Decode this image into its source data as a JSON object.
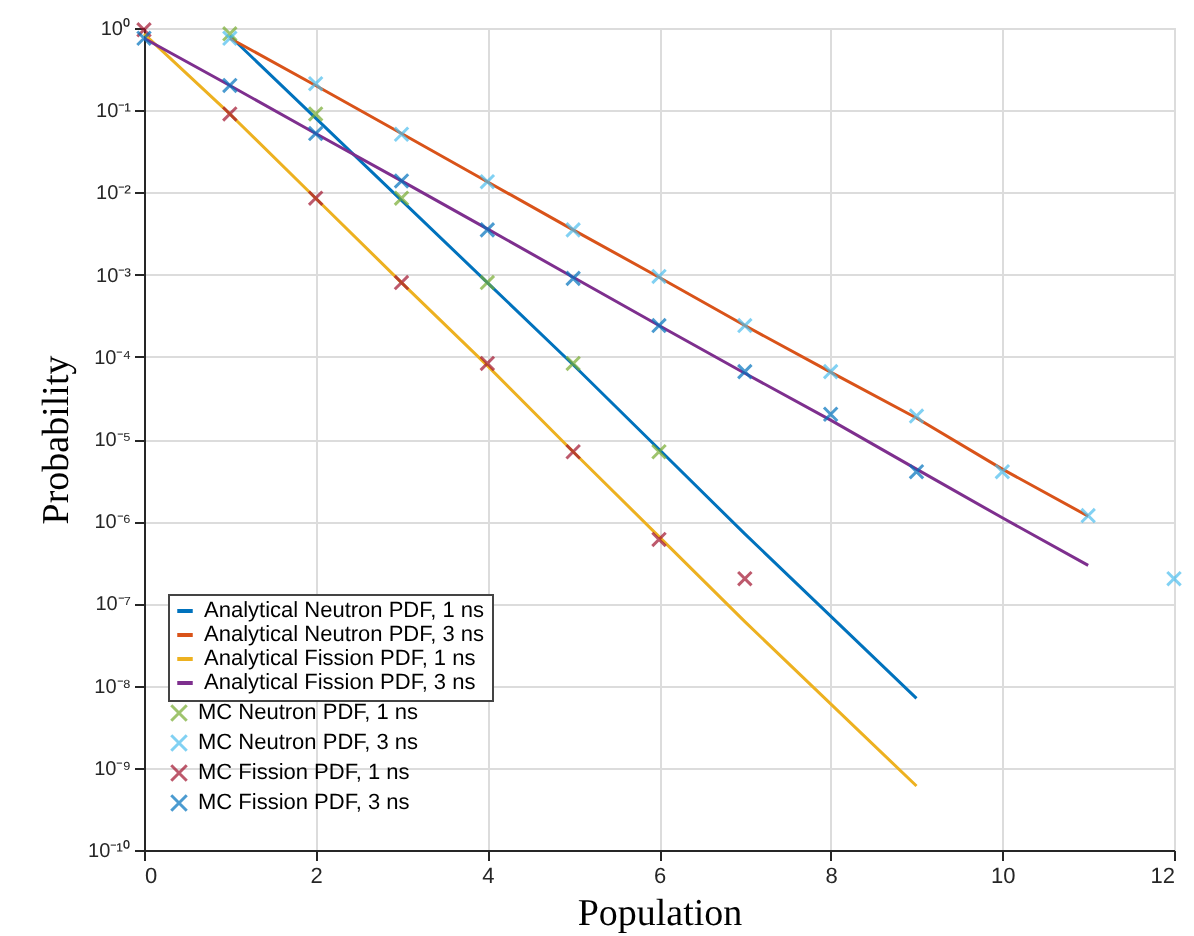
{
  "chart_data": {
    "type": "line",
    "xlabel": "Population",
    "ylabel": "Probability",
    "log": "y",
    "grid": true,
    "legend": "bottom left",
    "xlim": [
      0,
      12
    ],
    "xticks": [
      0,
      2,
      4,
      6,
      8,
      10,
      12
    ],
    "ylim": [
      1e-10,
      1
    ],
    "yticks": [
      {
        "value": 1e-10,
        "label": "10⁻¹⁰"
      },
      {
        "value": 1e-09,
        "label": "10⁻⁹"
      },
      {
        "value": 1e-08,
        "label": "10⁻⁸"
      },
      {
        "value": 1e-07,
        "label": "10⁻⁷"
      },
      {
        "value": 1e-06,
        "label": "10⁻⁶"
      },
      {
        "value": 1e-05,
        "label": "10⁻⁵"
      },
      {
        "value": 0.0001,
        "label": "10⁻⁴"
      },
      {
        "value": 0.001,
        "label": "10⁻³"
      },
      {
        "value": 0.01,
        "label": "10⁻²"
      },
      {
        "value": 0.1,
        "label": "10⁻¹"
      },
      {
        "value": 1,
        "label": "10⁰"
      }
    ],
    "series": [
      {
        "name": "Analytical Neutron PDF, 1 ns",
        "line_style": "solid",
        "color": "#0072bd",
        "x": [
          1,
          2,
          3,
          4,
          5,
          6,
          7,
          8,
          9
        ],
        "values": [
          0.8,
          0.08,
          0.008,
          0.0008,
          8e-05,
          7.5e-06,
          7e-07,
          7e-08,
          7e-09
        ]
      },
      {
        "name": "Analytical Neutron PDF, 3 ns",
        "line_style": "solid",
        "color": "#d95319",
        "x": [
          1,
          2,
          3,
          4,
          5,
          6,
          7,
          8,
          9,
          10,
          11
        ],
        "values": [
          0.75,
          0.2,
          0.052,
          0.0135,
          0.0035,
          0.00093,
          0.00024,
          6.5e-05,
          1.8e-05,
          4.3e-06,
          1.15e-06
        ]
      },
      {
        "name": "Analytical Fission PDF, 1 ns",
        "line_style": "solid",
        "color": "#edb120",
        "x": [
          0,
          1,
          2,
          3,
          4,
          5,
          6,
          7,
          8,
          9
        ],
        "values": [
          0.85,
          0.09,
          0.0085,
          0.0008,
          7.8e-05,
          7e-06,
          6.5e-07,
          6e-08,
          6e-09,
          6e-10
        ]
      },
      {
        "name": "Analytical Fission PDF, 3 ns",
        "line_style": "solid",
        "color": "#7e2f8e",
        "x": [
          0,
          1,
          2,
          3,
          4,
          5,
          6,
          7,
          8,
          9,
          10,
          11
        ],
        "values": [
          0.75,
          0.2,
          0.052,
          0.0138,
          0.0036,
          0.00093,
          0.00024,
          6.3e-05,
          1.7e-05,
          4.3e-06,
          1.1e-06,
          2.9e-07
        ]
      },
      {
        "name": "MC Neutron PDF, 1 ns",
        "type": "scatter",
        "marker": "cross",
        "color": "#77ac30",
        "x": [
          1,
          2,
          3,
          4,
          5,
          6
        ],
        "values": [
          0.85,
          0.09,
          0.0085,
          0.0008,
          8.3e-05,
          7e-06
        ]
      },
      {
        "name": "MC Neutron PDF, 3 ns",
        "type": "scatter",
        "marker": "cross",
        "color": "#4dbeee",
        "x": [
          1,
          2,
          3,
          4,
          5,
          6,
          7,
          8,
          9,
          10,
          11,
          12
        ],
        "values": [
          0.75,
          0.21,
          0.051,
          0.0135,
          0.0035,
          0.00095,
          0.00024,
          6.6e-05,
          1.9e-05,
          4e-06,
          1.17e-06,
          2e-07
        ]
      },
      {
        "name": "MC Fission PDF, 1 ns",
        "type": "scatter",
        "marker": "cross",
        "color": "#a2142f",
        "x": [
          0,
          1,
          2,
          3,
          4,
          5,
          6,
          7
        ],
        "values": [
          0.95,
          0.09,
          0.0085,
          0.0008,
          8.3e-05,
          7e-06,
          6e-07,
          2e-07
        ]
      },
      {
        "name": "MC Fission PDF, 3 ns",
        "type": "scatter",
        "marker": "cross",
        "color": "#0072bd",
        "x": [
          0,
          1,
          2,
          3,
          4,
          5,
          6,
          7,
          8,
          9
        ],
        "values": [
          0.75,
          0.2,
          0.052,
          0.0138,
          0.0035,
          0.0009,
          0.00024,
          6.6e-05,
          2e-05,
          4e-06
        ]
      }
    ]
  }
}
